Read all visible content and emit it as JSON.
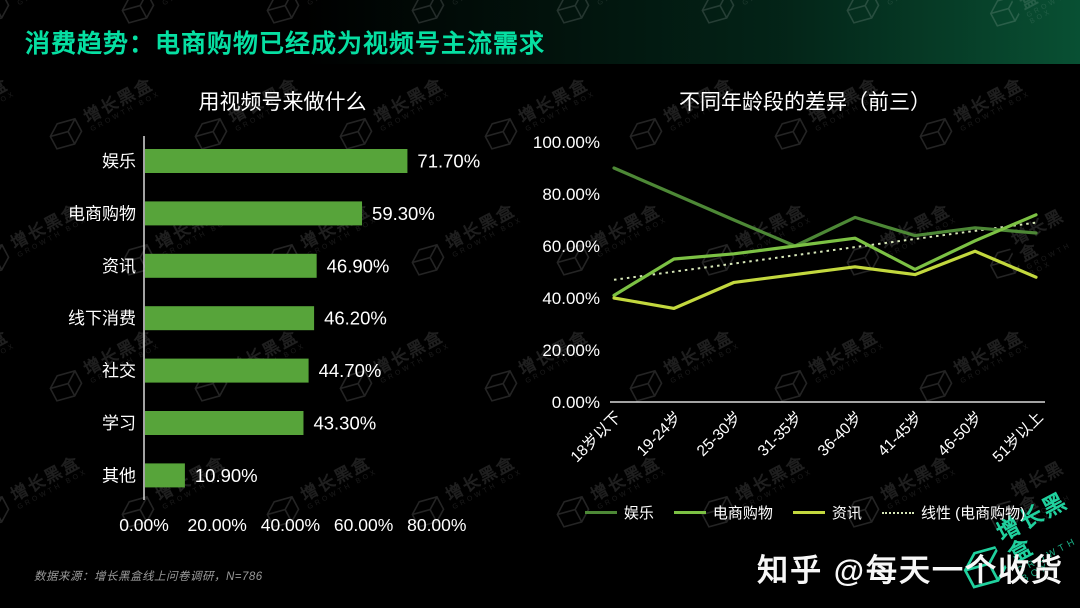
{
  "page": {
    "title": "消费趋势：电商购物已经成为视频号主流需求",
    "source_note": "数据来源：增长黑盒线上问卷调研，N=786",
    "credit": "知乎 @每天一个收货",
    "watermark": {
      "cn": "增长黑盒",
      "en": "GROWTH BOX"
    }
  },
  "colors": {
    "background": "#000000",
    "title_green": "#06dfa2",
    "bar_green": "#57a43a",
    "axis_gray": "#d9d9d9",
    "text_white": "#ffffff",
    "watermark_teal": "#22dca6"
  },
  "chart_data": [
    {
      "type": "bar",
      "orientation": "horizontal",
      "title": "用视频号来做什么",
      "categories": [
        "娱乐",
        "电商购物",
        "资讯",
        "线下消费",
        "社交",
        "学习",
        "其他"
      ],
      "values": [
        71.7,
        59.3,
        46.9,
        46.2,
        44.7,
        43.3,
        10.9
      ],
      "value_labels": [
        "71.70%",
        "59.30%",
        "46.90%",
        "46.20%",
        "44.70%",
        "43.30%",
        "10.90%"
      ],
      "x_ticks": [
        "0.00%",
        "20.00%",
        "40.00%",
        "60.00%",
        "80.00%"
      ],
      "xlim": [
        0,
        80
      ],
      "grid": false,
      "bar_color": "#57a43a"
    },
    {
      "type": "line",
      "title": "不同年龄段的差异（前三）",
      "categories": [
        "18岁以下",
        "19-24岁",
        "25-30岁",
        "31-35岁",
        "36-40岁",
        "41-45岁",
        "46-50岁",
        "51岁以上"
      ],
      "y_ticks": [
        "100.00%",
        "80.00%",
        "60.00%",
        "40.00%",
        "20.00%",
        "0.00%"
      ],
      "ylim": [
        0,
        100
      ],
      "grid": false,
      "legend_position": "bottom",
      "series": [
        {
          "name": "娱乐",
          "color": "#4d8836",
          "values": [
            90,
            80,
            70,
            60,
            71,
            64,
            67,
            65
          ]
        },
        {
          "name": "电商购物",
          "color": "#7cc144",
          "values": [
            41,
            55,
            57,
            60,
            63,
            51,
            62,
            72
          ]
        },
        {
          "name": "资讯",
          "color": "#c3d83e",
          "values": [
            40,
            36,
            46,
            49,
            52,
            49,
            58,
            48
          ]
        }
      ],
      "trendline": {
        "name": "线性 (电商购物)",
        "for_series": "电商购物",
        "style": "dotted",
        "color": "#d6e6b8",
        "start": 47,
        "end": 69
      }
    }
  ]
}
